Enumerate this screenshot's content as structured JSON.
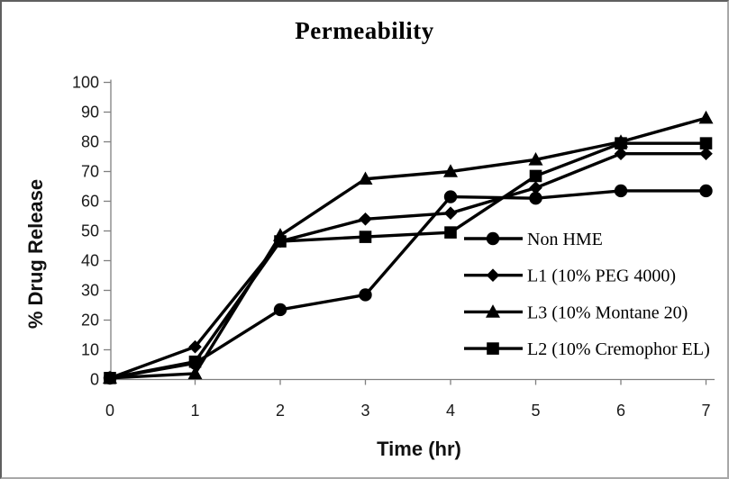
{
  "window": {
    "background": "#ffffff",
    "border_dark": "#5f5f5f",
    "border_light": "#a8a8a8"
  },
  "chart_data": {
    "type": "line",
    "title": "Permeability",
    "xlabel": "Time (hr)",
    "ylabel": "% Drug Release",
    "x": [
      0,
      1,
      2,
      3,
      4,
      5,
      6,
      7
    ],
    "x_ticks": [
      0,
      1,
      2,
      3,
      4,
      5,
      6,
      7
    ],
    "y_ticks": [
      0,
      10,
      20,
      30,
      40,
      50,
      60,
      70,
      80,
      90,
      100
    ],
    "xlim": [
      0,
      7
    ],
    "ylim": [
      0,
      100
    ],
    "grid": false,
    "legend_position": "inside-right-middle",
    "line_color": "#000000",
    "axis_color": "#808080",
    "tick_label_color": "#1a1a1a",
    "series": [
      {
        "name": "Non HME",
        "marker": "circle",
        "values": [
          0.5,
          5.5,
          23.5,
          28.5,
          61.5,
          61,
          63.5,
          63.5
        ]
      },
      {
        "name": "L1 (10% PEG 4000)",
        "marker": "diamond",
        "values": [
          0.5,
          11,
          46.5,
          54,
          56,
          64.5,
          76,
          76
        ]
      },
      {
        "name": "L3 (10% Montane 20)",
        "marker": "triangle",
        "values": [
          0.5,
          2,
          48.5,
          67.5,
          70,
          74,
          80,
          88
        ]
      },
      {
        "name": "L2 (10% Cremophor EL)",
        "marker": "square",
        "values": [
          0.5,
          6,
          46.5,
          48,
          49.5,
          68.5,
          79.5,
          79.5
        ]
      }
    ]
  }
}
